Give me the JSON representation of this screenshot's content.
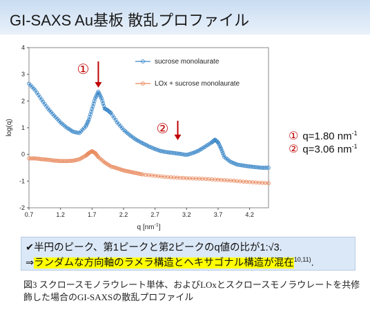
{
  "header": {
    "title": "GI-SAXS Au基板 散乱プロファイル"
  },
  "chart_data": {
    "type": "line",
    "xlabel": "q [nm",
    "xlabel_sup": "-1",
    "xlabel_tail": "]",
    "ylabel": "log(q)",
    "xlim": [
      0.7,
      4.5
    ],
    "ylim": [
      -2,
      4
    ],
    "x_ticks": [
      "0.7",
      "1.2",
      "1.7",
      "2.2",
      "2.7",
      "3.2",
      "3.7",
      "4.2"
    ],
    "y_ticks": [
      "4",
      "3",
      "2",
      "1",
      "0",
      "-1",
      "-2"
    ],
    "legend": [
      "sucrose monolaurate",
      "LOx + sucrose monolaurate"
    ],
    "series": [
      {
        "name": "sucrose monolaurate",
        "color": "#3a87c8",
        "x": [
          0.7,
          0.8,
          0.9,
          1.0,
          1.1,
          1.2,
          1.3,
          1.4,
          1.5,
          1.6,
          1.65,
          1.7,
          1.75,
          1.8,
          1.85,
          1.9,
          1.95,
          2.0,
          2.1,
          2.2,
          2.3,
          2.4,
          2.5,
          2.6,
          2.7,
          2.8,
          2.9,
          3.0,
          3.1,
          3.2,
          3.3,
          3.4,
          3.5,
          3.6,
          3.65,
          3.7,
          3.75,
          3.8,
          3.9,
          4.0,
          4.1,
          4.2,
          4.3,
          4.4,
          4.5
        ],
        "y": [
          2.65,
          2.4,
          2.05,
          1.72,
          1.45,
          1.2,
          1.0,
          0.85,
          0.8,
          1.05,
          1.3,
          1.7,
          2.1,
          2.35,
          2.1,
          1.72,
          1.65,
          1.55,
          1.2,
          0.92,
          0.72,
          0.55,
          0.42,
          0.3,
          0.2,
          0.12,
          0.08,
          0.05,
          0.02,
          -0.02,
          0.05,
          0.15,
          0.3,
          0.45,
          0.55,
          0.45,
          0.2,
          -0.1,
          -0.28,
          -0.38,
          -0.42,
          -0.45,
          -0.48,
          -0.5,
          -0.5
        ]
      },
      {
        "name": "LOx + sucrose monolaurate",
        "color": "#e8875a",
        "x": [
          0.7,
          0.8,
          0.9,
          1.0,
          1.1,
          1.2,
          1.3,
          1.4,
          1.5,
          1.6,
          1.65,
          1.7,
          1.75,
          1.8,
          1.9,
          2.0,
          2.1,
          2.2,
          2.3,
          2.4,
          2.5,
          2.7,
          2.9,
          3.1,
          3.3,
          3.5,
          3.7,
          3.9,
          4.1,
          4.3,
          4.5
        ],
        "y": [
          -0.15,
          -0.15,
          -0.18,
          -0.2,
          -0.23,
          -0.25,
          -0.25,
          -0.24,
          -0.18,
          -0.05,
          0.05,
          0.12,
          0.05,
          -0.1,
          -0.3,
          -0.45,
          -0.52,
          -0.6,
          -0.65,
          -0.7,
          -0.75,
          -0.8,
          -0.85,
          -0.88,
          -0.9,
          -0.92,
          -0.95,
          -0.98,
          -1.02,
          -1.05,
          -1.08
        ]
      }
    ],
    "peaks": [
      {
        "label": "①",
        "q": 1.8,
        "y": 2.35
      },
      {
        "label": "②",
        "q": 3.06,
        "y": 0.05
      }
    ]
  },
  "annotations": [
    {
      "num": "①",
      "text": "q=1.80 nm",
      "sup": "-1"
    },
    {
      "num": "②",
      "text": "q=3.06 nm",
      "sup": "-1"
    }
  ],
  "summary": {
    "line1": "✔半円のピーク、第1ピークと第2ピークのq値の比が1:√3.",
    "line2_arrow": "⇒",
    "line2_highlight": "ランダムな方向軸のラメラ構造とヘキサゴナル構造が混在",
    "line2_refs": "10,11)",
    "line2_tail": "."
  },
  "caption": "図3 スクロースモノラウレート単体、およびLOxとスクロースモノラウレートを共修飾した場合のGI-SAXSの散乱プロファイル"
}
